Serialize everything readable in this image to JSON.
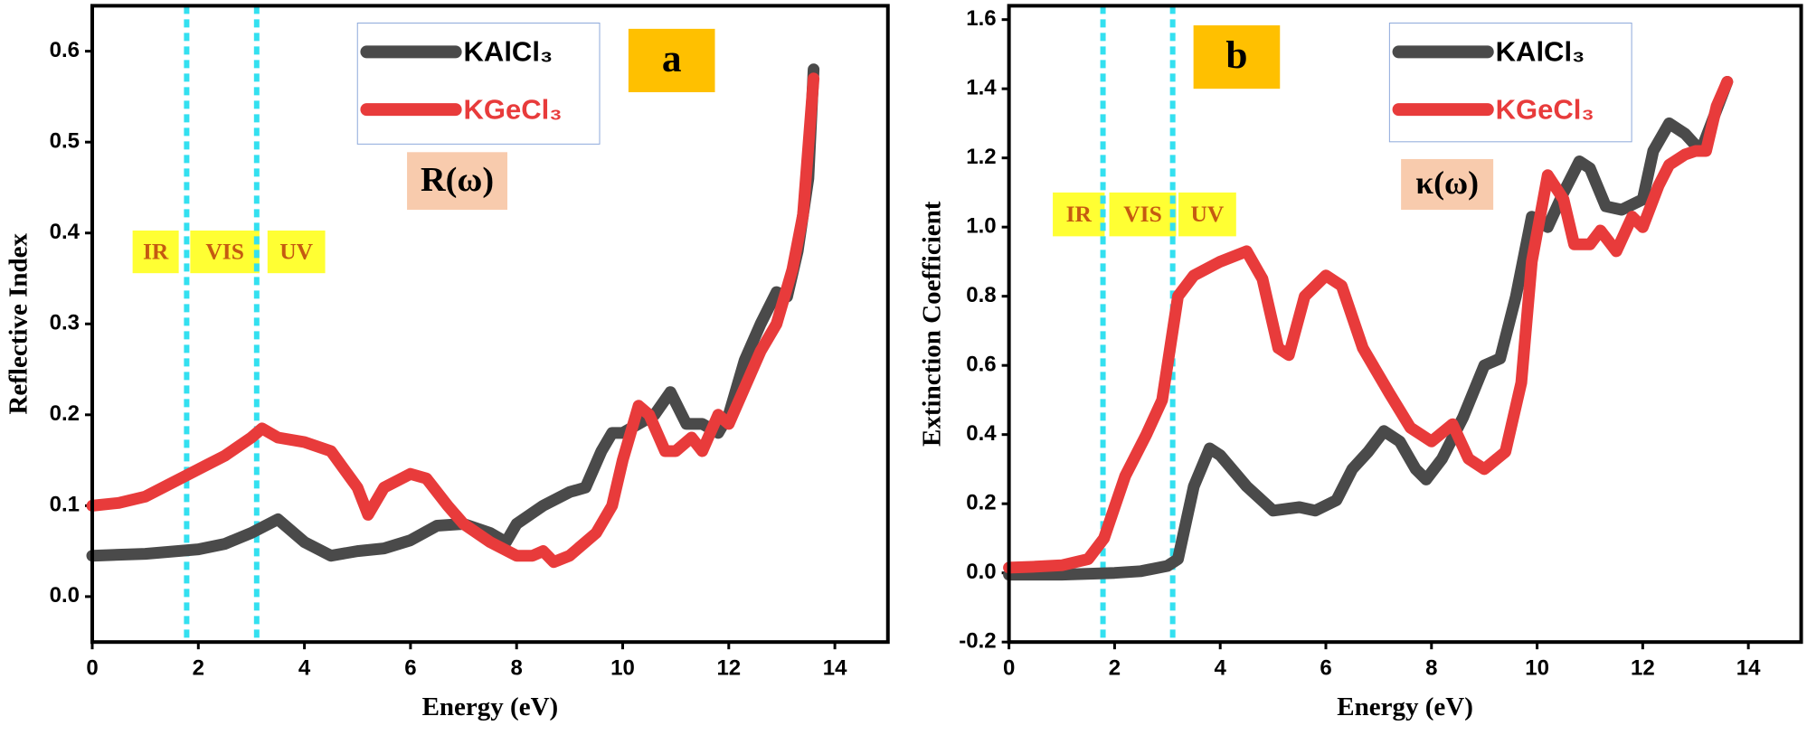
{
  "chart_data": [
    {
      "type": "line",
      "xlabel": "Energy (eV)",
      "ylabel": "Reflective Index",
      "xlim": [
        0,
        15
      ],
      "ylim": [
        -0.05,
        0.65
      ],
      "xticks": [
        0,
        2,
        4,
        6,
        8,
        10,
        12,
        14
      ],
      "yticks": [
        {
          "value": 0,
          "label": "0.0"
        },
        0.1,
        0.2,
        0.3,
        0.4,
        0.5,
        0.6
      ],
      "vlines": {
        "x": [
          1.78,
          3.1
        ],
        "color": "#33e0f0"
      },
      "annotations": [
        "a",
        "R(ω)",
        "IR",
        "VIS",
        "UV"
      ],
      "series": [
        {
          "name": "KAlCl₃",
          "color": "#4a4a4a",
          "x": [
            0,
            1,
            2,
            2.5,
            3,
            3.5,
            4,
            4.5,
            5,
            5.5,
            6,
            6.5,
            7,
            7.5,
            7.8,
            8,
            8.5,
            9,
            9.3,
            9.6,
            9.8,
            10,
            10.3,
            10.6,
            10.9,
            11.2,
            11.5,
            11.8,
            12,
            12.3,
            12.6,
            12.9,
            13.1,
            13.3,
            13.5,
            13.6
          ],
          "values": [
            0.045,
            0.047,
            0.052,
            0.058,
            0.07,
            0.085,
            0.06,
            0.045,
            0.05,
            0.053,
            0.062,
            0.078,
            0.08,
            0.07,
            0.06,
            0.08,
            0.1,
            0.115,
            0.12,
            0.16,
            0.18,
            0.18,
            0.19,
            0.2,
            0.225,
            0.19,
            0.19,
            0.18,
            0.2,
            0.26,
            0.3,
            0.335,
            0.33,
            0.38,
            0.46,
            0.58
          ]
        },
        {
          "name": "KGeCl₃",
          "color": "#e83b3b",
          "x": [
            0,
            0.5,
            1,
            1.5,
            2,
            2.5,
            3,
            3.2,
            3.5,
            4,
            4.5,
            5,
            5.2,
            5.5,
            6,
            6.3,
            6.7,
            7,
            7.5,
            8,
            8.3,
            8.5,
            8.7,
            9,
            9.5,
            9.8,
            10,
            10.3,
            10.5,
            10.8,
            11,
            11.3,
            11.5,
            11.8,
            12,
            12.3,
            12.6,
            12.9,
            13.2,
            13.4,
            13.6
          ],
          "values": [
            0.1,
            0.103,
            0.11,
            0.125,
            0.14,
            0.155,
            0.175,
            0.185,
            0.175,
            0.17,
            0.16,
            0.12,
            0.09,
            0.12,
            0.135,
            0.13,
            0.1,
            0.08,
            0.06,
            0.045,
            0.045,
            0.05,
            0.038,
            0.045,
            0.07,
            0.1,
            0.15,
            0.21,
            0.2,
            0.16,
            0.16,
            0.175,
            0.16,
            0.2,
            0.19,
            0.23,
            0.27,
            0.3,
            0.36,
            0.42,
            0.57
          ]
        }
      ]
    },
    {
      "type": "line",
      "xlabel": "Energy (eV)",
      "ylabel": "Extinction Coefficient",
      "xlim": [
        0,
        15
      ],
      "ylim": [
        -0.2,
        1.64
      ],
      "xticks": [
        0,
        2,
        4,
        6,
        8,
        10,
        12,
        14
      ],
      "yticks": [
        -0.2,
        {
          "value": 0,
          "label": "0.0"
        },
        0.2,
        0.4,
        0.6,
        0.8,
        {
          "value": 1,
          "label": "1.0"
        },
        1.2,
        1.4,
        1.6
      ],
      "vlines": {
        "x": [
          1.78,
          3.1
        ],
        "color": "#33e0f0"
      },
      "annotations": [
        "b",
        "κ(ω)",
        "IR",
        "VIS",
        "UV"
      ],
      "series": [
        {
          "name": "KAlCl₃",
          "color": "#4a4a4a",
          "x": [
            0,
            1,
            2,
            2.5,
            3,
            3.2,
            3.5,
            3.8,
            4,
            4.5,
            5,
            5.5,
            5.8,
            6.2,
            6.5,
            6.8,
            7.1,
            7.4,
            7.7,
            7.9,
            8.2,
            8.6,
            9,
            9.3,
            9.6,
            9.9,
            10.2,
            10.5,
            10.8,
            11,
            11.3,
            11.6,
            12,
            12.2,
            12.5,
            12.8,
            13.1,
            13.3,
            13.6
          ],
          "values": [
            -0.005,
            -0.005,
            0,
            0.005,
            0.02,
            0.04,
            0.25,
            0.36,
            0.34,
            0.25,
            0.18,
            0.19,
            0.18,
            0.21,
            0.3,
            0.35,
            0.41,
            0.38,
            0.3,
            0.27,
            0.33,
            0.45,
            0.6,
            0.62,
            0.8,
            1.03,
            1.0,
            1.1,
            1.19,
            1.17,
            1.06,
            1.05,
            1.08,
            1.22,
            1.3,
            1.27,
            1.22,
            1.3,
            1.42
          ]
        },
        {
          "name": "KGeCl₃",
          "color": "#e83b3b",
          "x": [
            0,
            0.5,
            1,
            1.5,
            1.8,
            2.2,
            2.6,
            2.9,
            3.2,
            3.5,
            4,
            4.5,
            4.8,
            5.1,
            5.3,
            5.6,
            6,
            6.3,
            6.7,
            7.2,
            7.6,
            8,
            8.4,
            8.7,
            9,
            9.4,
            9.7,
            9.9,
            10.2,
            10.5,
            10.7,
            11,
            11.2,
            11.5,
            11.8,
            12,
            12.3,
            12.5,
            12.8,
            13,
            13.2,
            13.4,
            13.6
          ],
          "values": [
            0.015,
            0.018,
            0.022,
            0.04,
            0.1,
            0.28,
            0.4,
            0.5,
            0.8,
            0.86,
            0.9,
            0.93,
            0.85,
            0.65,
            0.63,
            0.8,
            0.86,
            0.83,
            0.65,
            0.52,
            0.42,
            0.38,
            0.43,
            0.33,
            0.3,
            0.35,
            0.55,
            0.9,
            1.15,
            1.08,
            0.95,
            0.95,
            0.99,
            0.93,
            1.03,
            1.0,
            1.12,
            1.18,
            1.21,
            1.22,
            1.22,
            1.35,
            1.42
          ]
        }
      ]
    }
  ]
}
